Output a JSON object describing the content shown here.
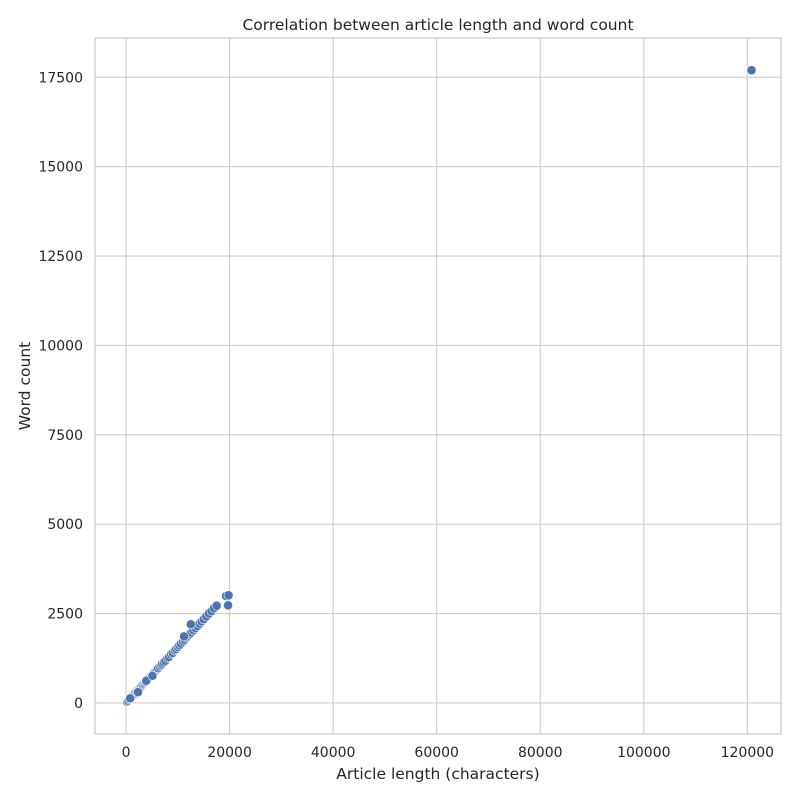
{
  "chart_data": {
    "type": "scatter",
    "title": "Correlation between article length and word count",
    "xlabel": "Article length (characters)",
    "ylabel": "Word count",
    "xlim": [
      -6000,
      126500
    ],
    "ylim": [
      -870,
      18600
    ],
    "xticks": [
      0,
      20000,
      40000,
      60000,
      80000,
      100000,
      120000
    ],
    "yticks": [
      0,
      2500,
      5000,
      7500,
      10000,
      12500,
      15000,
      17500
    ],
    "xtick_labels": [
      "0",
      "20000",
      "40000",
      "60000",
      "80000",
      "100000",
      "120000"
    ],
    "ytick_labels": [
      "0",
      "2500",
      "5000",
      "7500",
      "10000",
      "12500",
      "15000",
      "17500"
    ],
    "grid": true,
    "legend": "none",
    "point_color": "#4c72b0",
    "series": [
      {
        "x": [
          200,
          400,
          600,
          800,
          1000,
          1200,
          1400,
          1600,
          1800,
          2000,
          2200,
          2400,
          2600,
          2800,
          3000,
          3200,
          3400,
          3600,
          3800,
          4000,
          4200,
          4400,
          4600,
          4800,
          5000,
          5200,
          5400,
          5600,
          5800,
          6000,
          6200,
          6500,
          6800,
          7000,
          7300,
          7600,
          8000,
          8300,
          8700,
          9000,
          9400,
          9700,
          10000,
          10300,
          10600,
          11000,
          11300,
          11700,
          12000,
          12300,
          12600,
          13000,
          13400,
          13800,
          14200,
          14600,
          15000,
          15500,
          16000,
          16500,
          17000,
          17500,
          19300,
          19800,
          19700,
          11200,
          12500,
          3900,
          5100,
          2300,
          800,
          120800
        ],
        "y": [
          30,
          60,
          100,
          130,
          160,
          190,
          220,
          250,
          290,
          320,
          350,
          380,
          410,
          440,
          470,
          500,
          530,
          560,
          590,
          620,
          660,
          690,
          720,
          750,
          780,
          820,
          850,
          880,
          910,
          940,
          970,
          1020,
          1060,
          1100,
          1140,
          1180,
          1250,
          1290,
          1360,
          1400,
          1470,
          1510,
          1560,
          1610,
          1660,
          1720,
          1770,
          1830,
          1880,
          1920,
          1970,
          2030,
          2090,
          2150,
          2220,
          2280,
          2340,
          2420,
          2500,
          2570,
          2650,
          2720,
          2990,
          3010,
          2730,
          1860,
          2200,
          620,
          760,
          300,
          130,
          17700
        ]
      }
    ]
  }
}
